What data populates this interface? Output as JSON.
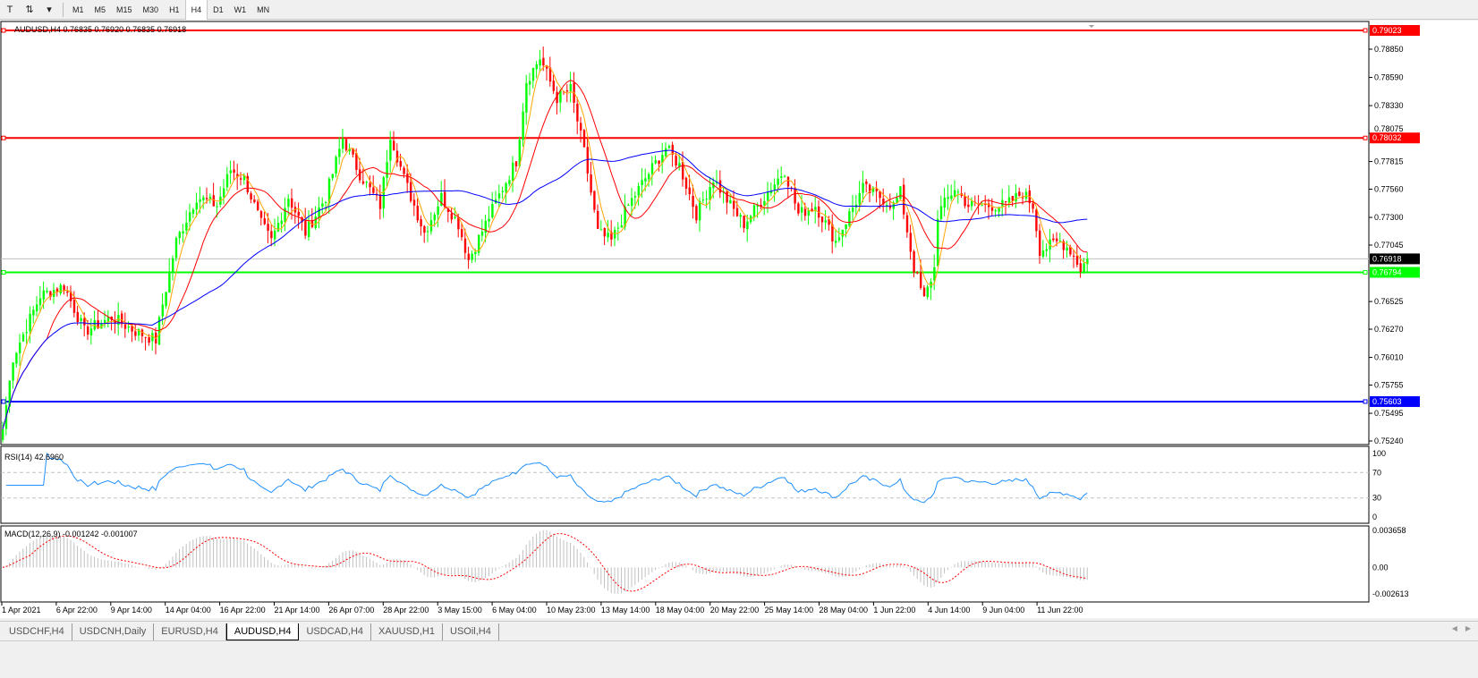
{
  "toolbar": {
    "text_tool": "T",
    "tools_menu": "⇅",
    "timeframes": [
      "M1",
      "M5",
      "M15",
      "M30",
      "H1",
      "H4",
      "D1",
      "W1",
      "MN"
    ],
    "active_timeframe": "H4"
  },
  "chart": {
    "info": "AUDUSD,H4  0.76835 0.76920 0.76835 0.76918",
    "price_ticks": [
      "0.78850",
      "0.78590",
      "0.78330",
      "0.78075",
      "0.77815",
      "0.77560",
      "0.77300",
      "0.77045",
      "0.76525",
      "0.76270",
      "0.76010",
      "0.75755",
      "0.75495",
      "0.75240"
    ],
    "price_tick_values": [
      0.7885,
      0.7859,
      0.7833,
      0.78075,
      0.77815,
      0.7756,
      0.773,
      0.77045,
      0.76525,
      0.7627,
      0.7601,
      0.75755,
      0.75495,
      0.7524
    ],
    "price_range": [
      0.7524,
      0.79023
    ],
    "levels": [
      {
        "label": "0.79023",
        "value": 0.79023,
        "color": "#ff0000"
      },
      {
        "label": "0.78032",
        "value": 0.78032,
        "color": "#ff0000"
      },
      {
        "label": "0.76794",
        "value": 0.76794,
        "color": "#00ff00"
      },
      {
        "label": "0.75603",
        "value": 0.75603,
        "color": "#0000ff"
      }
    ],
    "current_price": {
      "label": "0.76918",
      "value": 0.76918
    },
    "colors": {
      "bull": "#00ff00",
      "bear": "#ff0000",
      "ma_fast": "#ffa500",
      "ma_mid": "#ff0000",
      "ma_slow": "#0000ff",
      "rsi": "#1e90ff",
      "macd_hist": "#c0c0c0",
      "macd_signal": "#ff0000"
    },
    "price_path": [
      [
        0,
        0.7535
      ],
      [
        3,
        0.7601
      ],
      [
        11,
        0.7658
      ],
      [
        18,
        0.7667
      ],
      [
        24,
        0.7625
      ],
      [
        32,
        0.7638
      ],
      [
        39,
        0.7625
      ],
      [
        45,
        0.7617
      ],
      [
        47,
        0.765
      ],
      [
        51,
        0.7708
      ],
      [
        57,
        0.7749
      ],
      [
        63,
        0.7741
      ],
      [
        67,
        0.7774
      ],
      [
        71,
        0.7766
      ],
      [
        76,
        0.7724
      ],
      [
        79,
        0.7708
      ],
      [
        84,
        0.7749
      ],
      [
        89,
        0.7716
      ],
      [
        95,
        0.7749
      ],
      [
        100,
        0.7803
      ],
      [
        105,
        0.777
      ],
      [
        111,
        0.7741
      ],
      [
        114,
        0.7807
      ],
      [
        118,
        0.7766
      ],
      [
        124,
        0.7716
      ],
      [
        129,
        0.7749
      ],
      [
        134,
        0.7724
      ],
      [
        137,
        0.7691
      ],
      [
        142,
        0.7724
      ],
      [
        147,
        0.7757
      ],
      [
        151,
        0.7782
      ],
      [
        154,
        0.7856
      ],
      [
        158,
        0.7877
      ],
      [
        163,
        0.784
      ],
      [
        167,
        0.7848
      ],
      [
        171,
        0.779
      ],
      [
        175,
        0.7716
      ],
      [
        179,
        0.7708
      ],
      [
        184,
        0.7741
      ],
      [
        189,
        0.7766
      ],
      [
        195,
        0.7794
      ],
      [
        199,
        0.7778
      ],
      [
        204,
        0.7733
      ],
      [
        209,
        0.7766
      ],
      [
        214,
        0.7741
      ],
      [
        218,
        0.7724
      ],
      [
        224,
        0.7749
      ],
      [
        230,
        0.7774
      ],
      [
        234,
        0.7733
      ],
      [
        239,
        0.7741
      ],
      [
        245,
        0.7708
      ],
      [
        249,
        0.7733
      ],
      [
        253,
        0.7757
      ],
      [
        258,
        0.7749
      ],
      [
        262,
        0.7741
      ],
      [
        264,
        0.7753
      ],
      [
        268,
        0.7683
      ],
      [
        271,
        0.7654
      ],
      [
        274,
        0.7683
      ],
      [
        275,
        0.7733
      ],
      [
        280,
        0.7757
      ],
      [
        284,
        0.7741
      ],
      [
        289,
        0.7741
      ],
      [
        295,
        0.7741
      ],
      [
        300,
        0.7753
      ],
      [
        303,
        0.7741
      ],
      [
        305,
        0.77
      ],
      [
        311,
        0.7708
      ],
      [
        314,
        0.77
      ],
      [
        317,
        0.7683
      ],
      [
        319,
        0.76918
      ]
    ]
  },
  "rsi": {
    "label": "RSI(14) 42.6960",
    "ticks": [
      "100",
      "70",
      "30",
      "0"
    ],
    "levels": [
      70,
      30
    ]
  },
  "macd": {
    "label": "MACD(12,26,9) -0.001242 -0.001007",
    "ticks": [
      "0.003658",
      "0.00",
      "-0.002613"
    ],
    "range": [
      -0.002613,
      0.003658
    ]
  },
  "time_axis": [
    "1 Apr 2021",
    "6 Apr 22:00",
    "9 Apr 14:00",
    "14 Apr 04:00",
    "16 Apr 22:00",
    "21 Apr 14:00",
    "26 Apr 07:00",
    "28 Apr 22:00",
    "3 May 15:00",
    "6 May 04:00",
    "10 May 23:00",
    "13 May 14:00",
    "18 May 04:00",
    "20 May 22:00",
    "25 May 14:00",
    "28 May 04:00",
    "1 Jun 22:00",
    "4 Jun 14:00",
    "9 Jun 04:00",
    "11 Jun 22:00"
  ],
  "tabs": [
    {
      "label": "USDCHF,H4"
    },
    {
      "label": "USDCNH,Daily"
    },
    {
      "label": "EURUSD,H4"
    },
    {
      "label": "AUDUSD,H4",
      "active": true
    },
    {
      "label": "USDCAD,H4"
    },
    {
      "label": "XAUUSD,H1"
    },
    {
      "label": "USOil,H4"
    }
  ],
  "scroll": {
    "left": "◀",
    "right": "▶"
  }
}
